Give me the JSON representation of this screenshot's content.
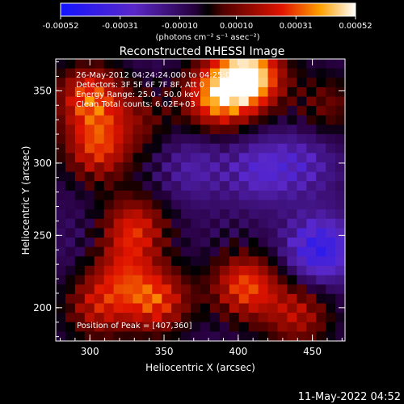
{
  "chart_data": {
    "type": "heatmap",
    "title": "Reconstructed RHESSI Image",
    "xlabel": "Heliocentric X (arcsec)",
    "ylabel": "Heliocentric Y (arcsec)",
    "xlim": [
      277,
      472
    ],
    "ylim": [
      177,
      372
    ],
    "xticks": [
      300,
      350,
      400,
      450
    ],
    "yticks": [
      200,
      250,
      300,
      350
    ],
    "colorbar": {
      "label": "(photons cm⁻² s⁻¹ asec⁻²)",
      "range": [
        -0.00052,
        0.00052
      ],
      "ticks": [
        "-0.00052",
        "-0.00031",
        "-0.00010",
        "0.00010",
        "0.00031",
        "0.00052"
      ],
      "tick_values": [
        -0.00052,
        -0.00031,
        -0.0001,
        0.0001,
        0.00031,
        0.00052
      ]
    },
    "annotations": [
      "26-May-2012 04:24:24.000 to 04:25:00.000",
      "Detectors: 3F 5F 6F 7F 8F, Att 0",
      "Energy Range: 25.0 - 50.0 keV",
      "Clean    Total counts: 6.02E+03"
    ],
    "peak_label": "Position of Peak = [407,360]",
    "peak": [
      407,
      360
    ],
    "hotspots": [
      {
        "x": 407,
        "y": 360,
        "value": 0.00052
      },
      {
        "x": 385,
        "y": 345,
        "value": 0.00034
      },
      {
        "x": 300,
        "y": 345,
        "value": 0.0003
      },
      {
        "x": 305,
        "y": 310,
        "value": 0.00026
      },
      {
        "x": 330,
        "y": 255,
        "value": 0.00024
      },
      {
        "x": 405,
        "y": 215,
        "value": 0.0003
      },
      {
        "x": 345,
        "y": 205,
        "value": 0.00028
      },
      {
        "x": 320,
        "y": 225,
        "value": 0.00014
      },
      {
        "x": 305,
        "y": 200,
        "value": 0.00018
      },
      {
        "x": 440,
        "y": 195,
        "value": 0.00018
      },
      {
        "x": 460,
        "y": 340,
        "value": 8e-05
      },
      {
        "x": 335,
        "y": 330,
        "value": 6e-05
      }
    ],
    "coldspots": [
      {
        "x": 455,
        "y": 240,
        "value": -0.0004
      },
      {
        "x": 415,
        "y": 295,
        "value": -0.00026
      },
      {
        "x": 445,
        "y": 300,
        "value": -0.00022
      },
      {
        "x": 370,
        "y": 295,
        "value": -0.0002
      },
      {
        "x": 300,
        "y": 240,
        "value": -0.00012
      },
      {
        "x": 370,
        "y": 320,
        "value": -0.0001
      }
    ],
    "background_value": -8e-05
  },
  "timestamp": "11-May-2022 04:52"
}
